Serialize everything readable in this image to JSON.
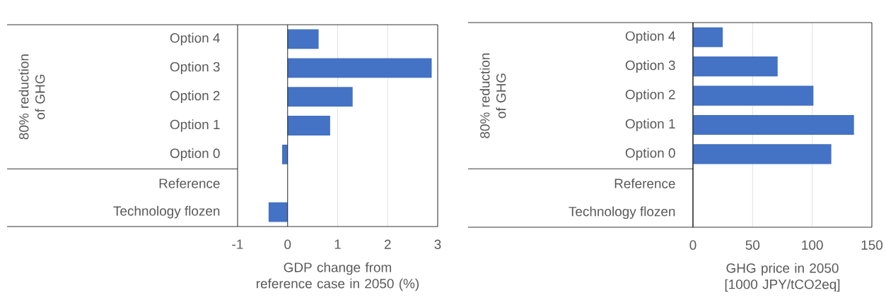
{
  "chart_data": [
    {
      "type": "bar",
      "orientation": "horizontal",
      "categories": [
        "Option 4",
        "Option 3",
        "Option 2",
        "Option 1",
        "Option 0",
        "Reference",
        "Technology flozen"
      ],
      "values": [
        0.62,
        2.88,
        1.3,
        0.85,
        -0.11,
        null,
        -0.38
      ],
      "color": "#4472c4",
      "xlim": [
        -1,
        3
      ],
      "xticks": [
        -1,
        0,
        1,
        2,
        3
      ],
      "grid": "x",
      "xlabel": "GDP change from reference case in 2050 (%)",
      "annotations": [
        "80% reduction of GHG"
      ]
    },
    {
      "type": "bar",
      "orientation": "horizontal",
      "categories": [
        "Option 4",
        "Option 3",
        "Option 2",
        "Option 1",
        "Option 0",
        "Reference",
        "Technology flozen"
      ],
      "values": [
        25,
        71,
        101,
        135,
        116,
        null,
        null
      ],
      "color": "#4472c4",
      "xlim": [
        0,
        150
      ],
      "xticks": [
        0,
        50,
        100,
        150
      ],
      "grid": "x",
      "xlabel": "GHG price in 2050 [1000 JPY/tCO2eq]",
      "annotations": [
        "80% reduction of GHG"
      ]
    }
  ]
}
